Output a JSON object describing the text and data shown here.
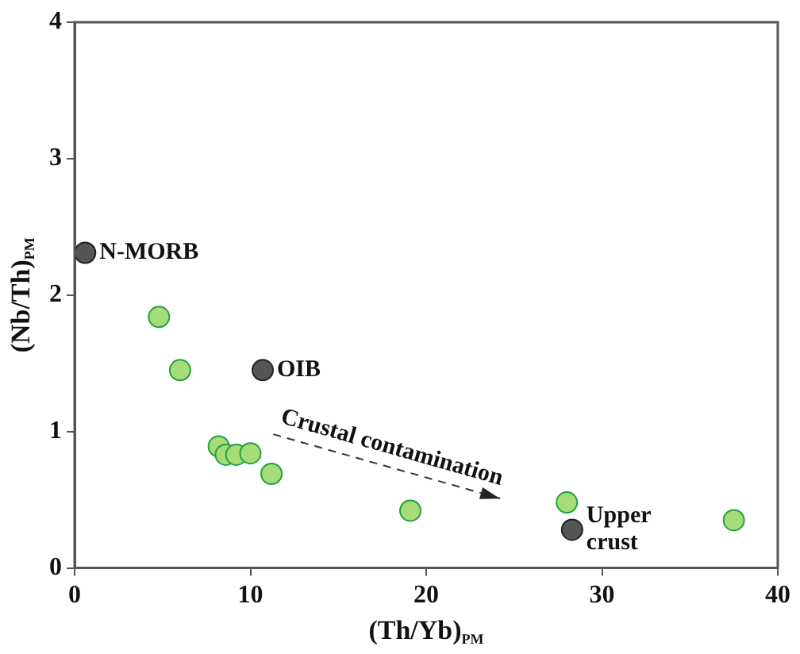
{
  "chart_data": {
    "type": "scatter",
    "xlabel": "(Th/Yb)$_{PM}$",
    "ylabel": "(Nb/Th)$_{PM}$",
    "xlim": [
      0,
      40
    ],
    "xticks": [
      0,
      10,
      20,
      30,
      40
    ],
    "ylim": [
      0,
      4
    ],
    "yticks": [
      0,
      1,
      2,
      3,
      4
    ],
    "grid": false,
    "legend": false,
    "marker": "circle",
    "series": [
      {
        "color": "#a6dc78",
        "x": [
          4.8,
          6.0,
          8.2,
          8.6,
          9.2,
          10.0,
          11.2,
          19.1,
          28.0,
          37.5
        ],
        "values": [
          1.84,
          1.45,
          0.89,
          0.83,
          0.83,
          0.84,
          0.69,
          0.42,
          0.48,
          0.35
        ]
      },
      {
        "color": "#555555",
        "x": [
          0.6,
          10.7,
          28.3
        ],
        "values": [
          2.31,
          1.45,
          0.28
        ]
      },
      {
        "type": "line",
        "color": "#333333",
        "line_style": "dashed",
        "marker": "none",
        "x": [
          11.3,
          24.2
        ],
        "values": [
          0.98,
          0.51
        ]
      }
    ],
    "annotations": [
      {
        "text": "N-MORB",
        "x": 0.6,
        "y": 2.31
      },
      {
        "text": "OIB",
        "x": 10.7,
        "y": 1.45
      },
      {
        "text": "Upper crust",
        "x": 28.3,
        "y": 0.28
      },
      "Crustal contamination"
    ]
  }
}
